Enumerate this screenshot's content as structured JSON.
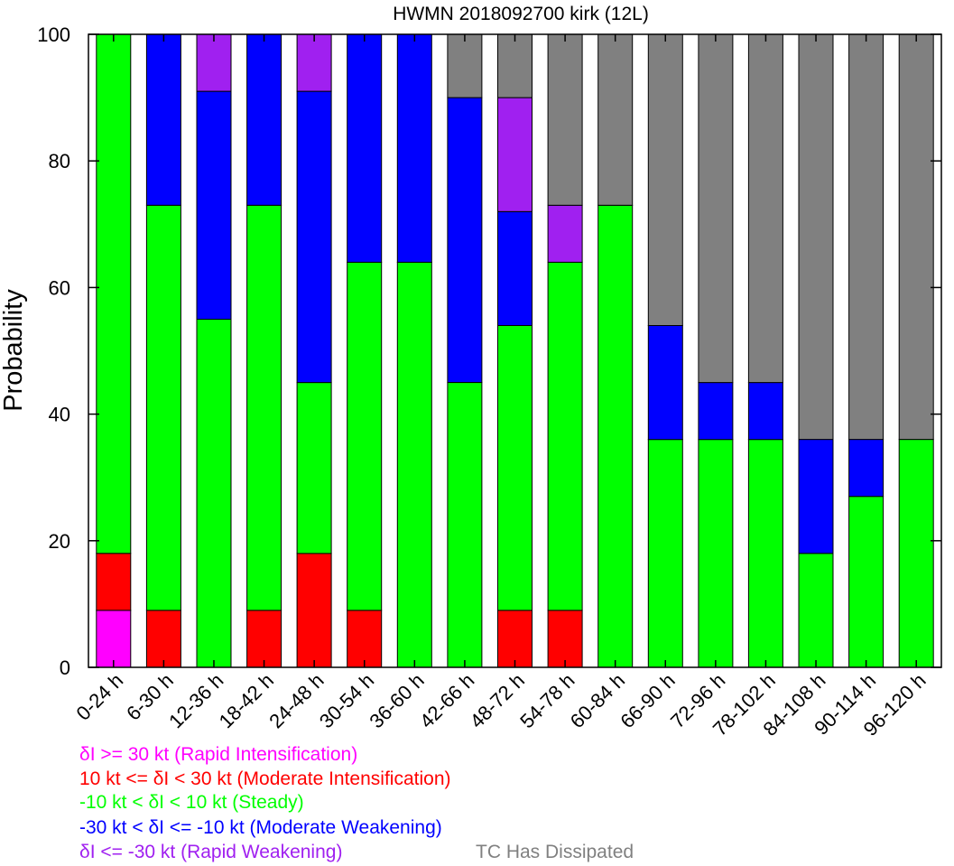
{
  "chart_data": {
    "type": "bar",
    "stacked": true,
    "title": "HWMN 2018092700 kirk (12L)",
    "ylabel": "Probability",
    "xlabel": "",
    "ylim": [
      0,
      100
    ],
    "yticks": [
      0,
      20,
      40,
      60,
      80,
      100
    ],
    "grid": false,
    "legend_position": "bottom-left",
    "categories": [
      "0-24 h",
      "6-30 h",
      "12-36 h",
      "18-42 h",
      "24-48 h",
      "30-54 h",
      "36-60 h",
      "42-66 h",
      "48-72 h",
      "54-78 h",
      "60-84 h",
      "66-90 h",
      "72-96 h",
      "78-102 h",
      "84-108 h",
      "90-114 h",
      "96-120 h"
    ],
    "series": [
      {
        "name": "δI >= 30 kt (Rapid Intensification)",
        "color": "#ff00ff",
        "values": [
          9,
          0,
          0,
          0,
          0,
          0,
          0,
          0,
          0,
          0,
          0,
          0,
          0,
          0,
          0,
          0,
          0
        ]
      },
      {
        "name": "10 kt <= δI < 30 kt (Moderate Intensification)",
        "color": "#ff0000",
        "values": [
          9,
          9,
          0,
          9,
          18,
          9,
          0,
          0,
          9,
          9,
          0,
          0,
          0,
          0,
          0,
          0,
          0
        ]
      },
      {
        "name": "-10 kt < δI < 10 kt (Steady)",
        "color": "#00ff00",
        "values": [
          82,
          64,
          55,
          64,
          27,
          55,
          64,
          45,
          45,
          55,
          73,
          36,
          36,
          36,
          18,
          27,
          36
        ]
      },
      {
        "name": "-30 kt < δI <= -10 kt (Moderate Weakening)",
        "color": "#0000ff",
        "values": [
          0,
          27,
          36,
          27,
          46,
          36,
          36,
          45,
          18,
          0,
          0,
          18,
          9,
          9,
          18,
          9,
          0
        ]
      },
      {
        "name": "δI <= -30 kt (Rapid Weakening)",
        "color": "#a020f0",
        "values": [
          0,
          0,
          9,
          0,
          9,
          0,
          0,
          0,
          18,
          9,
          0,
          0,
          0,
          0,
          0,
          0,
          0
        ]
      },
      {
        "name": "TC Has Dissipated",
        "color": "#808080",
        "values": [
          0,
          0,
          0,
          0,
          0,
          0,
          0,
          10,
          10,
          27,
          27,
          46,
          55,
          55,
          64,
          64,
          64
        ]
      }
    ]
  }
}
